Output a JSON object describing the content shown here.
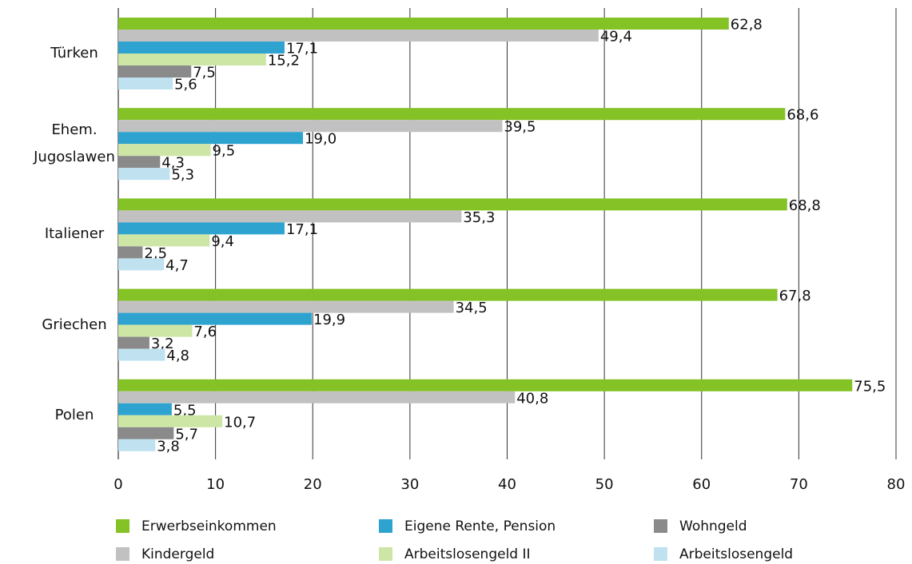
{
  "chart_data": {
    "type": "hbar",
    "categories": [
      "Türken",
      "Ehem.\nJugoslawen",
      "Italiener",
      "Griechen",
      "Polen"
    ],
    "series": [
      {
        "name": "Erwerbseinkommen",
        "color": "#84c225",
        "values": [
          62.8,
          68.6,
          68.8,
          67.8,
          75.5
        ],
        "value_labels": [
          "62,8",
          "68,6",
          "68,8",
          "67,8",
          "75,5"
        ]
      },
      {
        "name": "Kindergeld",
        "color": "#c1c1c1",
        "values": [
          49.4,
          39.5,
          35.3,
          34.5,
          40.8
        ],
        "value_labels": [
          "49,4",
          "39,5",
          "35,3",
          "34,5",
          "40,8"
        ]
      },
      {
        "name": "Eigene Rente, Pension",
        "color": "#2fa3cf",
        "values": [
          17.1,
          19.0,
          17.1,
          19.9,
          5.5
        ],
        "value_labels": [
          "17,1",
          "19,0",
          "17,1",
          "19,9",
          "5,5"
        ]
      },
      {
        "name": "Arbeitslosengeld II",
        "color": "#cde6a5",
        "values": [
          15.2,
          9.5,
          9.4,
          7.6,
          10.7
        ],
        "value_labels": [
          "15,2",
          "9,5",
          "9,4",
          "7,6",
          "10,7"
        ]
      },
      {
        "name": "Wohngeld",
        "color": "#8a8a8a",
        "values": [
          7.5,
          4.3,
          2.5,
          3.2,
          5.7
        ],
        "value_labels": [
          "7,5",
          "4,3",
          "2,5",
          "3,2",
          "5,7"
        ]
      },
      {
        "name": "Arbeitslosengeld",
        "color": "#bfe1f0",
        "values": [
          5.6,
          5.3,
          4.7,
          4.8,
          3.8
        ],
        "value_labels": [
          "5,6",
          "5,3",
          "4,7",
          "4,8",
          "3,8"
        ]
      }
    ],
    "xlim": [
      0,
      80
    ],
    "xticks": [
      0,
      10,
      20,
      30,
      40,
      50,
      60,
      70,
      80
    ],
    "grid": true
  }
}
